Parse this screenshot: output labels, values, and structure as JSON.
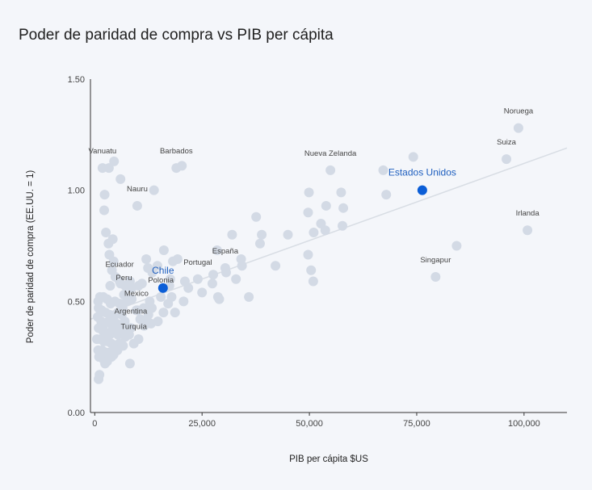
{
  "chart_data": {
    "type": "scatter",
    "title": "Poder de paridad de compra vs PIB per cápita",
    "xlabel": "PIB per cápita $US",
    "ylabel": "Poder de paridad de compra (EE.UU. = 1)",
    "xlim": [
      -1000,
      110000
    ],
    "ylim": [
      0,
      1.5
    ],
    "x_ticks": [
      "0",
      "25,000",
      "50,000",
      "75,000",
      "100,000"
    ],
    "y_ticks": [
      "0.00",
      "0.50",
      "1.00",
      "1.50"
    ],
    "trendline": {
      "x": [
        -1000,
        110000
      ],
      "y": [
        0.42,
        1.19
      ]
    },
    "colors": {
      "point": "#d3dae5",
      "highlight": "#0b5ed7",
      "trend": "#d8dde4",
      "axis": "#333333"
    },
    "points": [
      {
        "x": 98700,
        "y": 1.28,
        "label": "Noruega"
      },
      {
        "x": 95900,
        "y": 1.14,
        "label": "Suiza"
      },
      {
        "x": 100800,
        "y": 0.82,
        "label": "Irlanda"
      },
      {
        "x": 79400,
        "y": 0.61,
        "label": "Singapur"
      },
      {
        "x": 1800,
        "y": 1.1,
        "label": "Vanuatu"
      },
      {
        "x": 19000,
        "y": 1.1,
        "label": "Barbados"
      },
      {
        "x": 9900,
        "y": 0.93,
        "label": "Nauru"
      },
      {
        "x": 54900,
        "y": 1.09,
        "label": "Nueva Zelanda"
      },
      {
        "x": 30400,
        "y": 0.65,
        "label": "España"
      },
      {
        "x": 24000,
        "y": 0.6,
        "label": "Portugal"
      },
      {
        "x": 15400,
        "y": 0.52,
        "label": "Polonia"
      },
      {
        "x": 5800,
        "y": 0.59,
        "label": "Ecuador"
      },
      {
        "x": 6800,
        "y": 0.53,
        "label": "Peru"
      },
      {
        "x": 9700,
        "y": 0.46,
        "label": "Mexico"
      },
      {
        "x": 8400,
        "y": 0.38,
        "label": "Argentina"
      },
      {
        "x": 9100,
        "y": 0.31,
        "label": "Turquía"
      },
      {
        "x": 3300,
        "y": 1.1
      },
      {
        "x": 4500,
        "y": 1.13
      },
      {
        "x": 6000,
        "y": 1.05
      },
      {
        "x": 2300,
        "y": 0.98
      },
      {
        "x": 2200,
        "y": 0.91
      },
      {
        "x": 13800,
        "y": 1.0
      },
      {
        "x": 20300,
        "y": 1.11
      },
      {
        "x": 67200,
        "y": 1.09
      },
      {
        "x": 74200,
        "y": 1.15
      },
      {
        "x": 67900,
        "y": 0.98
      },
      {
        "x": 57400,
        "y": 0.99
      },
      {
        "x": 57900,
        "y": 0.92
      },
      {
        "x": 49900,
        "y": 0.99
      },
      {
        "x": 53900,
        "y": 0.93
      },
      {
        "x": 49700,
        "y": 0.9
      },
      {
        "x": 52700,
        "y": 0.85
      },
      {
        "x": 53700,
        "y": 0.82
      },
      {
        "x": 57700,
        "y": 0.84
      },
      {
        "x": 51000,
        "y": 0.81
      },
      {
        "x": 45000,
        "y": 0.8
      },
      {
        "x": 84300,
        "y": 0.75
      },
      {
        "x": 37600,
        "y": 0.88
      },
      {
        "x": 38900,
        "y": 0.8
      },
      {
        "x": 38500,
        "y": 0.76
      },
      {
        "x": 32000,
        "y": 0.8
      },
      {
        "x": 28500,
        "y": 0.73
      },
      {
        "x": 16100,
        "y": 0.73
      },
      {
        "x": 49700,
        "y": 0.71
      },
      {
        "x": 50400,
        "y": 0.64
      },
      {
        "x": 50900,
        "y": 0.59
      },
      {
        "x": 34100,
        "y": 0.69
      },
      {
        "x": 34300,
        "y": 0.66
      },
      {
        "x": 42100,
        "y": 0.66
      },
      {
        "x": 30600,
        "y": 0.63
      },
      {
        "x": 32900,
        "y": 0.6
      },
      {
        "x": 35900,
        "y": 0.52
      },
      {
        "x": 27600,
        "y": 0.62
      },
      {
        "x": 27400,
        "y": 0.58
      },
      {
        "x": 28700,
        "y": 0.52
      },
      {
        "x": 29000,
        "y": 0.51
      },
      {
        "x": 25000,
        "y": 0.54
      },
      {
        "x": 21000,
        "y": 0.59
      },
      {
        "x": 21800,
        "y": 0.56
      },
      {
        "x": 20700,
        "y": 0.5
      },
      {
        "x": 18200,
        "y": 0.68
      },
      {
        "x": 19300,
        "y": 0.69
      },
      {
        "x": 17600,
        "y": 0.6
      },
      {
        "x": 17400,
        "y": 0.57
      },
      {
        "x": 17900,
        "y": 0.52
      },
      {
        "x": 17100,
        "y": 0.49
      },
      {
        "x": 18700,
        "y": 0.45
      },
      {
        "x": 16000,
        "y": 0.45
      },
      {
        "x": 14700,
        "y": 0.41
      },
      {
        "x": 12000,
        "y": 0.69
      },
      {
        "x": 12400,
        "y": 0.65
      },
      {
        "x": 13400,
        "y": 0.63
      },
      {
        "x": 14600,
        "y": 0.66
      },
      {
        "x": 11000,
        "y": 0.58
      },
      {
        "x": 10200,
        "y": 0.57
      },
      {
        "x": 8200,
        "y": 0.59
      },
      {
        "x": 8600,
        "y": 0.56
      },
      {
        "x": 12800,
        "y": 0.5
      },
      {
        "x": 13300,
        "y": 0.47
      },
      {
        "x": 12500,
        "y": 0.44
      },
      {
        "x": 13100,
        "y": 0.4
      },
      {
        "x": 12200,
        "y": 0.41
      },
      {
        "x": 11400,
        "y": 0.47
      },
      {
        "x": 10000,
        "y": 0.46
      },
      {
        "x": 10600,
        "y": 0.42
      },
      {
        "x": 11500,
        "y": 0.39
      },
      {
        "x": 8200,
        "y": 0.22
      },
      {
        "x": 4200,
        "y": 0.78
      },
      {
        "x": 2600,
        "y": 0.81
      },
      {
        "x": 3200,
        "y": 0.76
      },
      {
        "x": 3400,
        "y": 0.71
      },
      {
        "x": 4400,
        "y": 0.68
      },
      {
        "x": 4000,
        "y": 0.64
      },
      {
        "x": 3600,
        "y": 0.57
      },
      {
        "x": 4800,
        "y": 0.61
      },
      {
        "x": 6000,
        "y": 0.58
      },
      {
        "x": 7100,
        "y": 0.57
      },
      {
        "x": 800,
        "y": 0.5
      },
      {
        "x": 1200,
        "y": 0.52
      },
      {
        "x": 2000,
        "y": 0.52
      },
      {
        "x": 2900,
        "y": 0.51
      },
      {
        "x": 3700,
        "y": 0.49
      },
      {
        "x": 4700,
        "y": 0.5
      },
      {
        "x": 5800,
        "y": 0.49
      },
      {
        "x": 6500,
        "y": 0.47
      },
      {
        "x": 7500,
        "y": 0.5
      },
      {
        "x": 8600,
        "y": 0.51
      },
      {
        "x": 900,
        "y": 0.47
      },
      {
        "x": 1600,
        "y": 0.46
      },
      {
        "x": 2500,
        "y": 0.45
      },
      {
        "x": 3500,
        "y": 0.44
      },
      {
        "x": 4400,
        "y": 0.43
      },
      {
        "x": 5400,
        "y": 0.45
      },
      {
        "x": 6300,
        "y": 0.44
      },
      {
        "x": 700,
        "y": 0.43
      },
      {
        "x": 1500,
        "y": 0.41
      },
      {
        "x": 2300,
        "y": 0.4
      },
      {
        "x": 3200,
        "y": 0.41
      },
      {
        "x": 4100,
        "y": 0.39
      },
      {
        "x": 5100,
        "y": 0.4
      },
      {
        "x": 6000,
        "y": 0.39
      },
      {
        "x": 7000,
        "y": 0.41
      },
      {
        "x": 7800,
        "y": 0.37
      },
      {
        "x": 900,
        "y": 0.38
      },
      {
        "x": 1800,
        "y": 0.37
      },
      {
        "x": 2600,
        "y": 0.36
      },
      {
        "x": 3500,
        "y": 0.35
      },
      {
        "x": 4500,
        "y": 0.36
      },
      {
        "x": 5400,
        "y": 0.35
      },
      {
        "x": 6300,
        "y": 0.36
      },
      {
        "x": 7100,
        "y": 0.34
      },
      {
        "x": 8000,
        "y": 0.35
      },
      {
        "x": 500,
        "y": 0.33
      },
      {
        "x": 1300,
        "y": 0.33
      },
      {
        "x": 2100,
        "y": 0.32
      },
      {
        "x": 3000,
        "y": 0.32
      },
      {
        "x": 3900,
        "y": 0.31
      },
      {
        "x": 4800,
        "y": 0.3
      },
      {
        "x": 5700,
        "y": 0.31
      },
      {
        "x": 6600,
        "y": 0.3
      },
      {
        "x": 800,
        "y": 0.28
      },
      {
        "x": 1700,
        "y": 0.28
      },
      {
        "x": 2600,
        "y": 0.27
      },
      {
        "x": 3500,
        "y": 0.27
      },
      {
        "x": 4400,
        "y": 0.26
      },
      {
        "x": 5300,
        "y": 0.28
      },
      {
        "x": 1000,
        "y": 0.25
      },
      {
        "x": 2000,
        "y": 0.24
      },
      {
        "x": 2900,
        "y": 0.23
      },
      {
        "x": 3900,
        "y": 0.25
      },
      {
        "x": 2400,
        "y": 0.22
      },
      {
        "x": 1100,
        "y": 0.17
      },
      {
        "x": 900,
        "y": 0.15
      },
      {
        "x": 10200,
        "y": 0.33
      }
    ],
    "highlights": [
      {
        "x": 76300,
        "y": 1.0,
        "label": "Estados Unidos"
      },
      {
        "x": 15900,
        "y": 0.56,
        "label": "Chile"
      }
    ]
  }
}
